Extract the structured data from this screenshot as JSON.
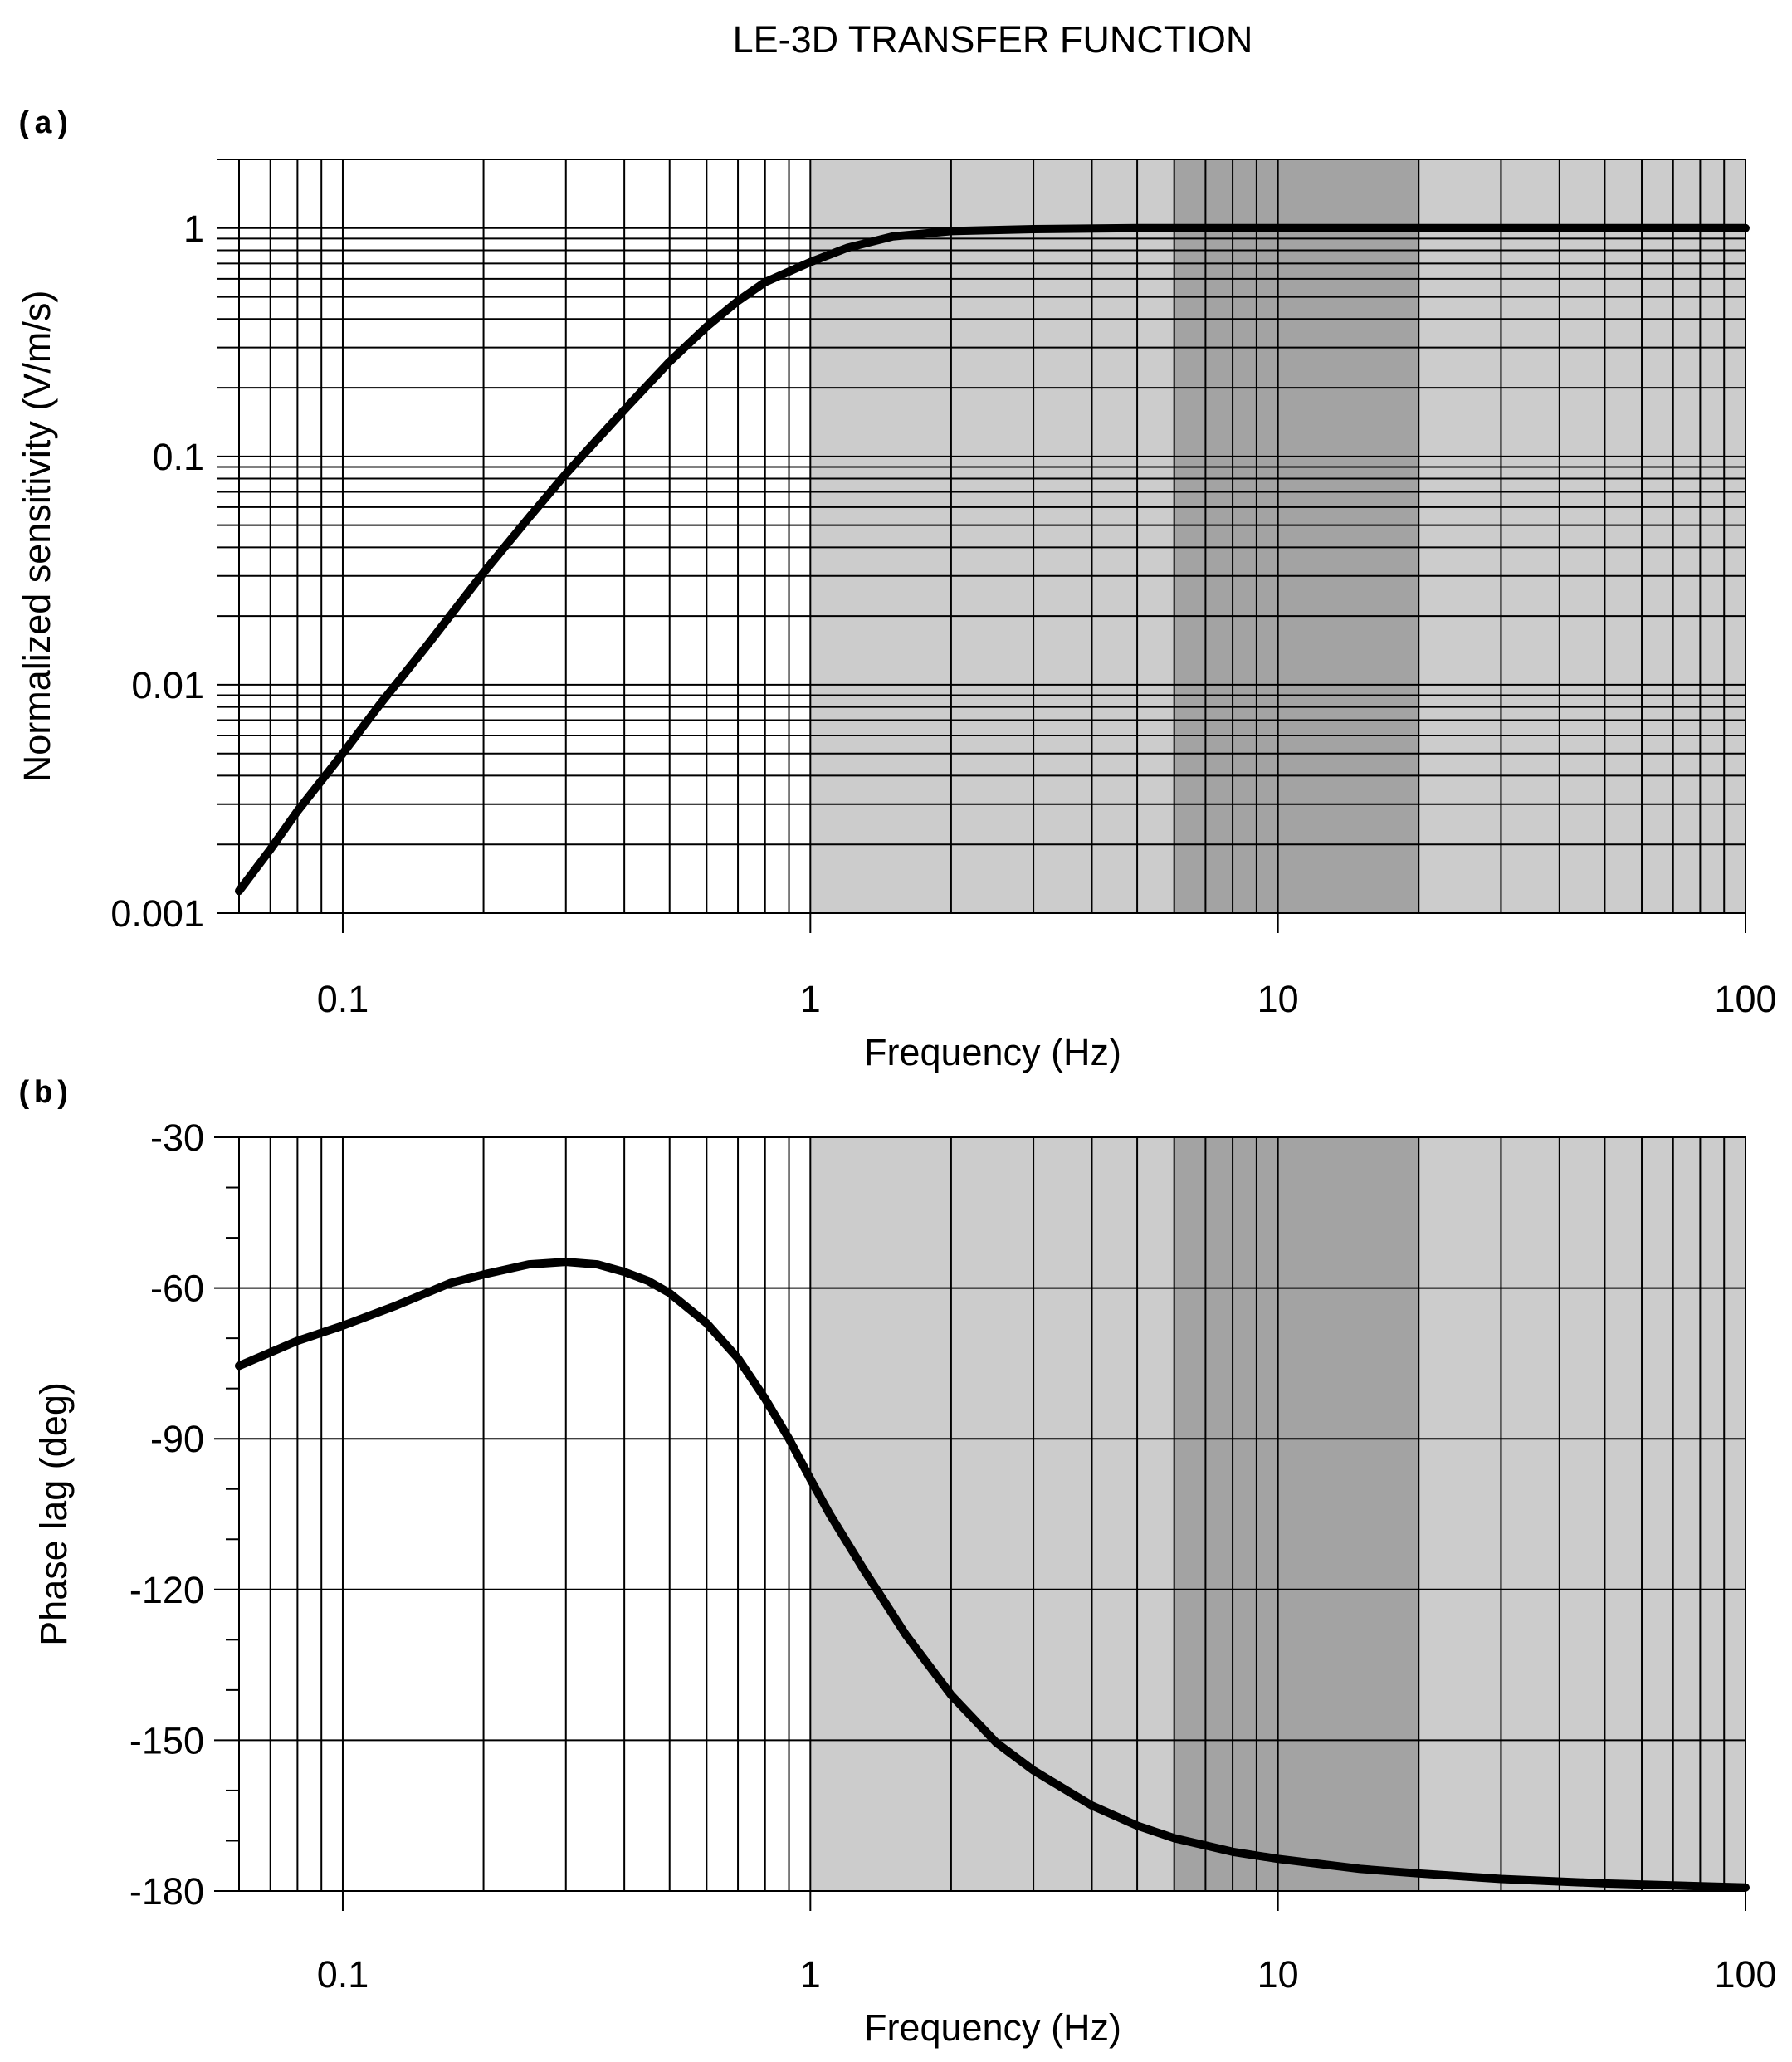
{
  "title": "LE-3D  TRANSFER  FUNCTION",
  "panel_labels": [
    "(a)",
    "(b)"
  ],
  "colors": {
    "background": "#ffffff",
    "band_light": "#cccccc",
    "band_dark": "#a3a3a3",
    "grid": "#000000",
    "curve": "#000000"
  },
  "chart_data": [
    {
      "type": "line",
      "panel": "(a)",
      "xlabel": "Frequency  (Hz)",
      "ylabel": "Normalized sensitivity (V/m/s)",
      "xscale": "log",
      "yscale": "log",
      "xlim": [
        0.06,
        100
      ],
      "ylim": [
        0.001,
        2
      ],
      "xticks": [
        0.1,
        1,
        10,
        100
      ],
      "xtick_labels": [
        "0.1",
        "1",
        "10",
        "100"
      ],
      "yticks": [
        0.001,
        0.01,
        0.1,
        1
      ],
      "ytick_labels": [
        "0.001",
        "0.01",
        "0.1",
        "1"
      ],
      "shaded_bands": [
        {
          "from": 1,
          "to": 100,
          "shade": "light"
        },
        {
          "from": 6,
          "to": 20,
          "shade": "dark"
        }
      ],
      "series": [
        {
          "name": "Normalized sensitivity",
          "x": [
            0.06,
            0.07,
            0.08,
            0.1,
            0.12,
            0.15,
            0.2,
            0.25,
            0.3,
            0.4,
            0.5,
            0.6,
            0.7,
            0.8,
            1,
            1.2,
            1.5,
            2,
            3,
            5,
            10,
            20,
            50,
            100
          ],
          "y": [
            0.00125,
            0.0019,
            0.0028,
            0.005,
            0.0082,
            0.0145,
            0.031,
            0.054,
            0.084,
            0.16,
            0.26,
            0.37,
            0.48,
            0.58,
            0.71,
            0.82,
            0.92,
            0.97,
            0.99,
            1.0,
            1.0,
            1.0,
            1.0,
            1.0
          ]
        }
      ]
    },
    {
      "type": "line",
      "panel": "(b)",
      "xlabel": "Frequency  (Hz)",
      "ylabel": "Phase lag (deg)",
      "xscale": "log",
      "yscale": "linear",
      "xlim": [
        0.06,
        100
      ],
      "ylim": [
        -180,
        -30
      ],
      "xticks": [
        0.1,
        1,
        10,
        100
      ],
      "xtick_labels": [
        "0.1",
        "1",
        "10",
        "100"
      ],
      "yticks": [
        -180,
        -150,
        -120,
        -90,
        -60,
        -30
      ],
      "ytick_labels": [
        "-180",
        "-150",
        "-120",
        "-90",
        "-60",
        "-30"
      ],
      "shaded_bands": [
        {
          "from": 1,
          "to": 100,
          "shade": "light"
        },
        {
          "from": 6,
          "to": 20,
          "shade": "dark"
        }
      ],
      "series": [
        {
          "name": "Phase lag",
          "x": [
            0.06,
            0.08,
            0.1,
            0.13,
            0.17,
            0.2,
            0.25,
            0.3,
            0.35,
            0.4,
            0.45,
            0.5,
            0.6,
            0.7,
            0.8,
            0.9,
            1,
            1.1,
            1.3,
            1.6,
            2,
            2.5,
            3,
            4,
            5,
            6,
            8,
            10,
            15,
            20,
            30,
            50,
            100
          ],
          "y": [
            -75.5,
            -70.5,
            -67.5,
            -63.5,
            -59,
            -57.3,
            -55.3,
            -54.8,
            -55.3,
            -56.8,
            -58.6,
            -61,
            -67,
            -74,
            -82,
            -90,
            -98,
            -105,
            -116,
            -129,
            -141,
            -150.5,
            -156,
            -163,
            -167,
            -169.5,
            -172.2,
            -173.6,
            -175.6,
            -176.5,
            -177.6,
            -178.5,
            -179.3
          ]
        }
      ]
    }
  ]
}
